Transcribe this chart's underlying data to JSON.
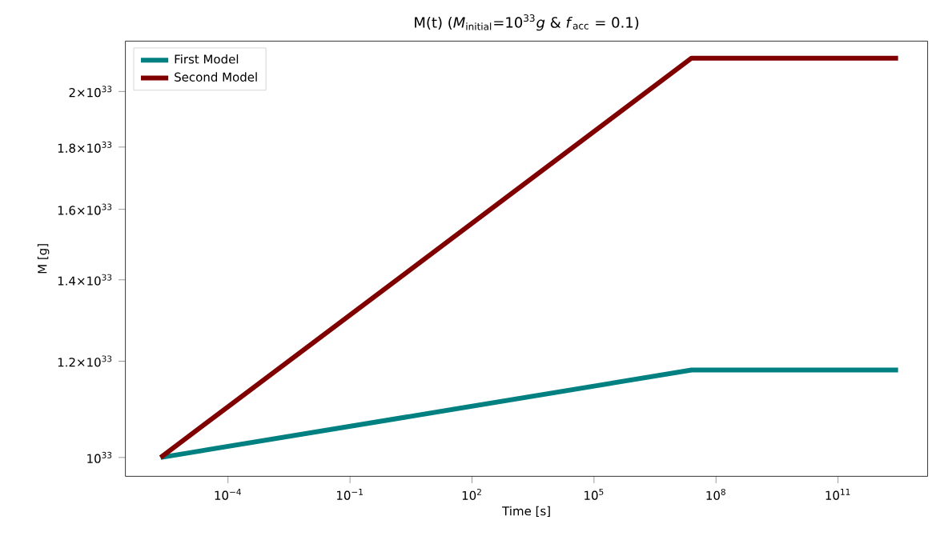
{
  "chart_data": {
    "type": "line",
    "title": "M(t) (*M*$_{initial}$=10$^{33}$*g* & *f*$_{acc}$ = 0.1)",
    "xlabel": "Time [s]",
    "ylabel": "M [g]",
    "log": "xy",
    "xlim": [
      3e-07,
      16000000000000.0
    ],
    "ylim": [
      9.65e+32,
      2.2e+33
    ],
    "xticks": [
      {
        "value": 0.0001,
        "label": "10$^{−4}$"
      },
      {
        "value": 0.1,
        "label": "10$^{−1}$"
      },
      {
        "value": 100,
        "label": "10$^{2}$"
      },
      {
        "value": 100000.0,
        "label": "10$^{5}$"
      },
      {
        "value": 100000000.0,
        "label": "10$^{8}$"
      },
      {
        "value": 100000000000.0,
        "label": "10$^{11}$"
      }
    ],
    "yticks": [
      {
        "value": 1e+33,
        "label": "10$^{33}$"
      },
      {
        "value": 1.2e+33,
        "label": "1.2×10$^{33}$"
      },
      {
        "value": 1.4e+33,
        "label": "1.4×10$^{33}$"
      },
      {
        "value": 1.6e+33,
        "label": "1.6×10$^{33}$"
      },
      {
        "value": 1.8e+33,
        "label": "1.8×10$^{33}$"
      },
      {
        "value": 2e+33,
        "label": "2×10$^{33}$"
      }
    ],
    "x": [
      2.2e-06,
      25000000.0,
      3000000000000.0
    ],
    "series": [
      {
        "name": "First Model",
        "color": "#008080",
        "values": [
          1e+33,
          1.18e+33,
          1.18e+33
        ]
      },
      {
        "name": "Second Model",
        "color": "#800000",
        "values": [
          1e+33,
          2.13e+33,
          2.13e+33
        ]
      }
    ],
    "legend": "top left",
    "grid": false
  }
}
